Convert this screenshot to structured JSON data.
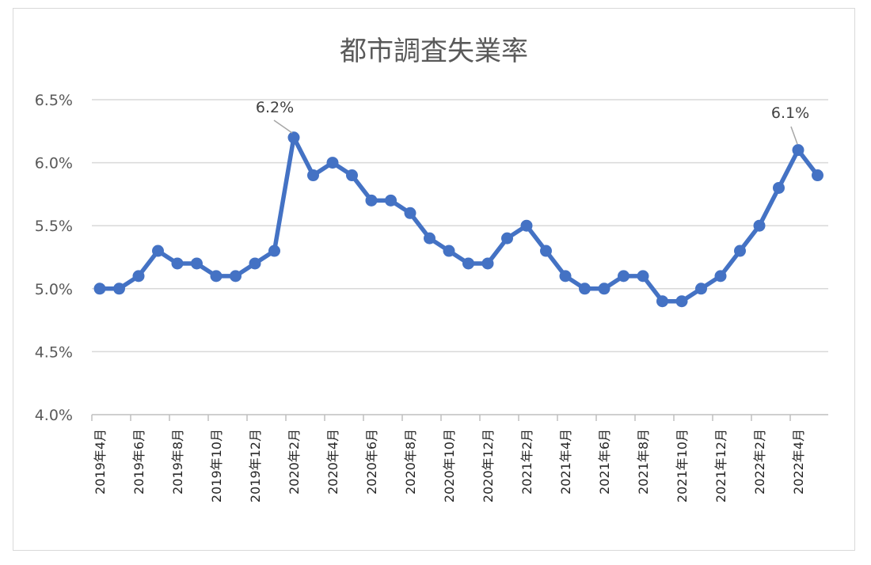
{
  "chart_data": {
    "type": "line",
    "title": "都市調査失業率",
    "xlabel": "",
    "ylabel": "",
    "ylim": [
      4.0,
      6.5
    ],
    "yticks": [
      "4.0%",
      "4.5%",
      "5.0%",
      "5.5%",
      "6.0%",
      "6.5%"
    ],
    "ytick_values": [
      4.0,
      4.5,
      5.0,
      5.5,
      6.0,
      6.5
    ],
    "grid": true,
    "legend": "none",
    "line_color": "#4472c4",
    "categories": [
      "2019年4月",
      "2019年5月",
      "2019年6月",
      "2019年7月",
      "2019年8月",
      "2019年9月",
      "2019年10月",
      "2019年11月",
      "2019年12月",
      "2020年1月",
      "2020年2月",
      "2020年3月",
      "2020年4月",
      "2020年5月",
      "2020年6月",
      "2020年7月",
      "2020年8月",
      "2020年9月",
      "2020年10月",
      "2020年11月",
      "2020年12月",
      "2021年1月",
      "2021年2月",
      "2021年3月",
      "2021年4月",
      "2021年5月",
      "2021年6月",
      "2021年7月",
      "2021年8月",
      "2021年9月",
      "2021年10月",
      "2021年11月",
      "2021年12月",
      "2022年1月",
      "2022年2月",
      "2022年3月",
      "2022年4月",
      "2022年5月"
    ],
    "x_tick_labels": [
      "2019年4月",
      "2019年6月",
      "2019年8月",
      "2019年10月",
      "2019年12月",
      "2020年2月",
      "2020年4月",
      "2020年6月",
      "2020年8月",
      "2020年10月",
      "2020年12月",
      "2021年2月",
      "2021年4月",
      "2021年6月",
      "2021年8月",
      "2021年10月",
      "2021年12月",
      "2022年2月",
      "2022年4月"
    ],
    "values": [
      5.0,
      5.0,
      5.1,
      5.3,
      5.2,
      5.2,
      5.1,
      5.1,
      5.2,
      5.3,
      6.2,
      5.9,
      6.0,
      5.9,
      5.7,
      5.7,
      5.6,
      5.4,
      5.3,
      5.2,
      5.2,
      5.4,
      5.5,
      5.3,
      5.1,
      5.0,
      5.0,
      5.1,
      5.1,
      4.9,
      4.9,
      5.0,
      5.1,
      5.3,
      5.5,
      5.8,
      6.1,
      5.9
    ],
    "annotations": [
      {
        "category": "2020年2月",
        "value": 6.2,
        "text": "6.2%"
      },
      {
        "category": "2022年4月",
        "value": 6.1,
        "text": "6.1%"
      }
    ]
  }
}
